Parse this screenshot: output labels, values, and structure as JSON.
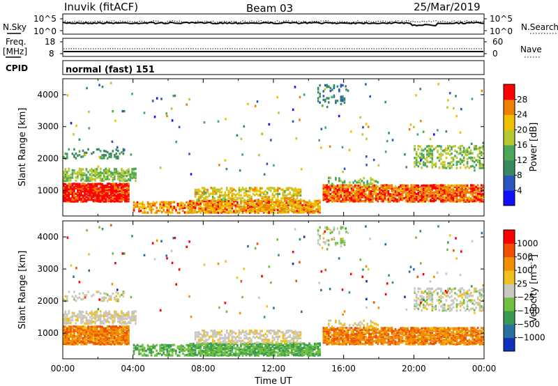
{
  "header": {
    "station": "Inuvik (fitACF)",
    "beam": "Beam 03",
    "date": "25/Mar/2019"
  },
  "top_panels": {
    "nsky_label": "N.Sky",
    "nsky_ticks": [
      "10^5",
      "10^0"
    ],
    "nsearch_label": "N.Search",
    "nsearch_ticks": [
      "10^5",
      "10^0"
    ],
    "freq_label": "Freq.",
    "freq_unit": "[MHz]",
    "freq_ticks": [
      "18",
      "8"
    ],
    "nave_label": "Nave",
    "nave_ticks": [
      "60",
      "0"
    ],
    "cpid_label": "CPID",
    "cpid_value": "normal (fast) 151"
  },
  "chart_data": [
    {
      "type": "heatmap",
      "name": "power",
      "ylabel": "Slant Range [km]",
      "xlabel": "",
      "ylim": [
        200,
        4500
      ],
      "xlim": [
        0,
        24
      ],
      "yticks": [
        "1000",
        "2000",
        "3000",
        "4000"
      ],
      "colorbar_label": "Power [dB]",
      "colorbar_ticks": [
        "4",
        "8",
        "12",
        "16",
        "20",
        "24",
        "28"
      ],
      "colors": [
        "#1010ff",
        "#2a58c0",
        "#3a8a60",
        "#4aa858",
        "#b8c830",
        "#f0c000",
        "#f08000",
        "#ff0000"
      ]
    },
    {
      "type": "heatmap",
      "name": "velocity",
      "ylabel": "Slant Range [km]",
      "xlabel": "Time UT",
      "ylim": [
        200,
        4500
      ],
      "xlim": [
        0,
        24
      ],
      "yticks": [
        "1000",
        "2000",
        "3000",
        "4000"
      ],
      "xticks": [
        "00:00",
        "04:00",
        "08:00",
        "12:00",
        "16:00",
        "20:00",
        "00:00"
      ],
      "colorbar_label": "Velocity [m s",
      "colorbar_sup": "-1",
      "colorbar_label_end": "]",
      "colorbar_ticks": [
        "1000",
        "500",
        "100",
        "25",
        "−25",
        "−100",
        "−500",
        "−1000"
      ],
      "colors": [
        "#1030c0",
        "#2a70a0",
        "#3a9a50",
        "#70c040",
        "#c8c8c0",
        "#f0c020",
        "#f09000",
        "#f05000",
        "#ff0000"
      ]
    }
  ],
  "colors": {
    "power": [
      "#1010ff",
      "#2a58c0",
      "#3a8a60",
      "#4aa858",
      "#b8c830",
      "#f0c000",
      "#f08000",
      "#ff0000"
    ],
    "velocity": [
      "#1030c0",
      "#2a70a0",
      "#3a9a50",
      "#70c040",
      "#c8c8c0",
      "#f0c020",
      "#f09000",
      "#f05000",
      "#ff0000"
    ]
  }
}
